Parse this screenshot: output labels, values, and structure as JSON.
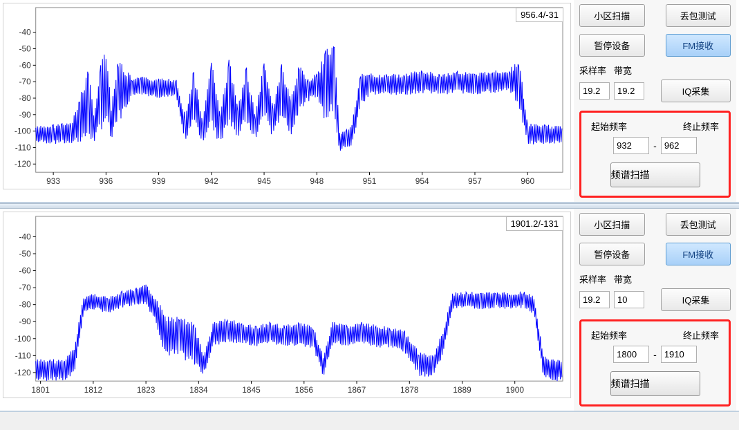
{
  "panels": [
    {
      "chart": {
        "type": "line",
        "ylim": [
          -125,
          -25
        ],
        "yticks": [
          -40,
          -50,
          -60,
          -70,
          -80,
          -90,
          -100,
          -110,
          -120
        ],
        "xlim": [
          932,
          962
        ],
        "xticks": [
          933,
          936,
          939,
          942,
          945,
          948,
          951,
          954,
          957,
          960
        ],
        "cursor_label": "956.4/-31",
        "line_color": "#0000ff",
        "background_color": "#ffffff",
        "grid_color": "#d8d8d8",
        "axis_color": "#000000",
        "tick_fontsize": 12,
        "baseline": -100,
        "envelope": [
          {
            "x": 932,
            "hi": -97,
            "lo": -107
          },
          {
            "x": 933,
            "hi": -96,
            "lo": -108
          },
          {
            "x": 933.5,
            "hi": -95,
            "lo": -108
          },
          {
            "x": 934,
            "hi": -95,
            "lo": -108
          },
          {
            "x": 934.5,
            "hi": -80,
            "lo": -107
          },
          {
            "x": 935,
            "hi": -58,
            "lo": -105
          },
          {
            "x": 935.3,
            "hi": -90,
            "lo": -108
          },
          {
            "x": 935.7,
            "hi": -55,
            "lo": -100
          },
          {
            "x": 936,
            "hi": -50,
            "lo": -95
          },
          {
            "x": 936.3,
            "hi": -85,
            "lo": -107
          },
          {
            "x": 936.7,
            "hi": -55,
            "lo": -95
          },
          {
            "x": 937,
            "hi": -60,
            "lo": -90
          },
          {
            "x": 937.5,
            "hi": -68,
            "lo": -78
          },
          {
            "x": 938,
            "hi": -67,
            "lo": -78
          },
          {
            "x": 939,
            "hi": -68,
            "lo": -80
          },
          {
            "x": 940,
            "hi": -68,
            "lo": -80
          },
          {
            "x": 940.5,
            "hi": -90,
            "lo": -108
          },
          {
            "x": 941,
            "hi": -62,
            "lo": -95
          },
          {
            "x": 941.5,
            "hi": -95,
            "lo": -108
          },
          {
            "x": 942,
            "hi": -55,
            "lo": -100
          },
          {
            "x": 942.5,
            "hi": -90,
            "lo": -108
          },
          {
            "x": 943,
            "hi": -55,
            "lo": -95
          },
          {
            "x": 943.5,
            "hi": -85,
            "lo": -106
          },
          {
            "x": 944,
            "hi": -60,
            "lo": -95
          },
          {
            "x": 944.5,
            "hi": -90,
            "lo": -108
          },
          {
            "x": 945,
            "hi": -55,
            "lo": -90
          },
          {
            "x": 945.5,
            "hi": -85,
            "lo": -105
          },
          {
            "x": 946,
            "hi": -58,
            "lo": -90
          },
          {
            "x": 946.5,
            "hi": -80,
            "lo": -105
          },
          {
            "x": 947,
            "hi": -60,
            "lo": -88
          },
          {
            "x": 947.5,
            "hi": -68,
            "lo": -82
          },
          {
            "x": 948,
            "hi": -65,
            "lo": -80
          },
          {
            "x": 948.5,
            "hi": -50,
            "lo": -95
          },
          {
            "x": 949,
            "hi": -48,
            "lo": -90
          },
          {
            "x": 949.3,
            "hi": -100,
            "lo": -113
          },
          {
            "x": 949.7,
            "hi": -98,
            "lo": -110
          },
          {
            "x": 950,
            "hi": -95,
            "lo": -110
          },
          {
            "x": 950.5,
            "hi": -65,
            "lo": -85
          },
          {
            "x": 951,
            "hi": -65,
            "lo": -78
          },
          {
            "x": 952,
            "hi": -65,
            "lo": -78
          },
          {
            "x": 953,
            "hi": -65,
            "lo": -78
          },
          {
            "x": 954,
            "hi": -63,
            "lo": -77
          },
          {
            "x": 955,
            "hi": -65,
            "lo": -78
          },
          {
            "x": 956,
            "hi": -63,
            "lo": -77
          },
          {
            "x": 957,
            "hi": -65,
            "lo": -78
          },
          {
            "x": 958,
            "hi": -63,
            "lo": -77
          },
          {
            "x": 959,
            "hi": -62,
            "lo": -76
          },
          {
            "x": 959.5,
            "hi": -55,
            "lo": -85
          },
          {
            "x": 960,
            "hi": -95,
            "lo": -108
          },
          {
            "x": 961,
            "hi": -96,
            "lo": -108
          },
          {
            "x": 962,
            "hi": -97,
            "lo": -108
          }
        ]
      },
      "controls": {
        "btn_cell_scan": "小区扫描",
        "btn_loss_test": "丢包测试",
        "btn_pause": "暂停设备",
        "btn_fm": "FM接收",
        "sample_rate_label": "采样率",
        "bandwidth_label": "带宽",
        "sample_rate": "19.2",
        "bandwidth": "19.2",
        "btn_iq": "IQ采集",
        "start_freq_label": "起始频率",
        "end_freq_label": "终止频率",
        "start_freq": "932",
        "end_freq": "962",
        "btn_spectrum_scan": "频谱扫描"
      }
    },
    {
      "chart": {
        "type": "line",
        "ylim": [
          -125,
          -28
        ],
        "yticks": [
          -40,
          -50,
          -60,
          -70,
          -80,
          -90,
          -100,
          -110,
          -120
        ],
        "xlim": [
          1800,
          1910
        ],
        "xticks": [
          1801,
          1812,
          1823,
          1834,
          1845,
          1856,
          1867,
          1878,
          1889,
          1900
        ],
        "cursor_label": "1901.2/-131",
        "line_color": "#0000ff",
        "background_color": "#ffffff",
        "grid_color": "#d8d8d8",
        "axis_color": "#000000",
        "tick_fontsize": 12,
        "baseline": -115,
        "envelope": [
          {
            "x": 1800,
            "hi": -112,
            "lo": -125
          },
          {
            "x": 1803,
            "hi": -112,
            "lo": -125
          },
          {
            "x": 1806,
            "hi": -112,
            "lo": -125
          },
          {
            "x": 1808,
            "hi": -105,
            "lo": -122
          },
          {
            "x": 1810,
            "hi": -75,
            "lo": -85
          },
          {
            "x": 1812,
            "hi": -73,
            "lo": -83
          },
          {
            "x": 1815,
            "hi": -75,
            "lo": -85
          },
          {
            "x": 1818,
            "hi": -72,
            "lo": -82
          },
          {
            "x": 1821,
            "hi": -70,
            "lo": -80
          },
          {
            "x": 1823,
            "hi": -68,
            "lo": -80
          },
          {
            "x": 1825,
            "hi": -75,
            "lo": -90
          },
          {
            "x": 1827,
            "hi": -85,
            "lo": -110
          },
          {
            "x": 1830,
            "hi": -85,
            "lo": -112
          },
          {
            "x": 1833,
            "hi": -88,
            "lo": -115
          },
          {
            "x": 1835,
            "hi": -110,
            "lo": -122
          },
          {
            "x": 1837,
            "hi": -90,
            "lo": -105
          },
          {
            "x": 1840,
            "hi": -88,
            "lo": -102
          },
          {
            "x": 1843,
            "hi": -90,
            "lo": -103
          },
          {
            "x": 1846,
            "hi": -92,
            "lo": -105
          },
          {
            "x": 1849,
            "hi": -90,
            "lo": -103
          },
          {
            "x": 1852,
            "hi": -92,
            "lo": -105
          },
          {
            "x": 1855,
            "hi": -90,
            "lo": -104
          },
          {
            "x": 1858,
            "hi": -93,
            "lo": -106
          },
          {
            "x": 1860,
            "hi": -110,
            "lo": -123
          },
          {
            "x": 1862,
            "hi": -90,
            "lo": -103
          },
          {
            "x": 1865,
            "hi": -92,
            "lo": -105
          },
          {
            "x": 1868,
            "hi": -90,
            "lo": -103
          },
          {
            "x": 1871,
            "hi": -92,
            "lo": -105
          },
          {
            "x": 1874,
            "hi": -93,
            "lo": -106
          },
          {
            "x": 1877,
            "hi": -95,
            "lo": -108
          },
          {
            "x": 1880,
            "hi": -108,
            "lo": -122
          },
          {
            "x": 1883,
            "hi": -110,
            "lo": -123
          },
          {
            "x": 1885,
            "hi": -95,
            "lo": -110
          },
          {
            "x": 1887,
            "hi": -73,
            "lo": -83
          },
          {
            "x": 1890,
            "hi": -72,
            "lo": -82
          },
          {
            "x": 1893,
            "hi": -73,
            "lo": -83
          },
          {
            "x": 1896,
            "hi": -72,
            "lo": -82
          },
          {
            "x": 1899,
            "hi": -73,
            "lo": -83
          },
          {
            "x": 1902,
            "hi": -72,
            "lo": -82
          },
          {
            "x": 1904,
            "hi": -75,
            "lo": -86
          },
          {
            "x": 1906,
            "hi": -110,
            "lo": -123
          },
          {
            "x": 1908,
            "hi": -112,
            "lo": -125
          },
          {
            "x": 1910,
            "hi": -112,
            "lo": -125
          }
        ]
      },
      "controls": {
        "btn_cell_scan": "小区扫描",
        "btn_loss_test": "丢包测试",
        "btn_pause": "暂停设备",
        "btn_fm": "FM接收",
        "sample_rate_label": "采样率",
        "bandwidth_label": "带宽",
        "sample_rate": "19.2",
        "bandwidth": "10",
        "btn_iq": "IQ采集",
        "start_freq_label": "起始频率",
        "end_freq_label": "终止频率",
        "start_freq": "1800",
        "end_freq": "1910",
        "btn_spectrum_scan": "频谱扫描"
      }
    }
  ]
}
